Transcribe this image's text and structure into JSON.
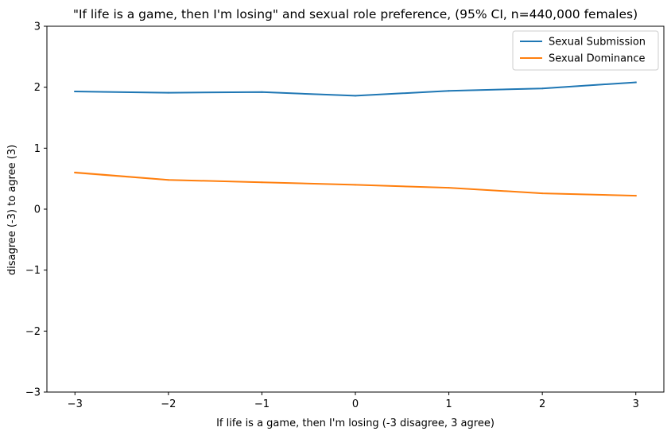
{
  "chart_data": {
    "type": "line",
    "title": "\"If life is a game, then I'm losing\" and sexual role preference, (95% CI, n=440,000 females)",
    "xlabel": "If life is a game, then I'm losing (-3 disagree, 3 agree)",
    "ylabel": "disagree (-3) to agree (3)",
    "x": [
      -3,
      -2,
      -1,
      0,
      1,
      2,
      3
    ],
    "x_tick_labels": [
      "−3",
      "−2",
      "−1",
      "0",
      "1",
      "2",
      "3"
    ],
    "y_tick_values": [
      -3,
      -2,
      -1,
      0,
      1,
      2,
      3
    ],
    "y_tick_labels": [
      "−3",
      "−2",
      "−1",
      "0",
      "1",
      "2",
      "3"
    ],
    "xlim": [
      -3.3,
      3.3
    ],
    "ylim": [
      -3,
      3
    ],
    "grid": false,
    "legend_position": "top-right",
    "series": [
      {
        "name": "Sexual Submission",
        "color": "#1f77b4",
        "values": [
          1.93,
          1.91,
          1.92,
          1.86,
          1.94,
          1.98,
          2.08
        ],
        "ci_low": [
          1.92,
          1.9,
          1.91,
          1.85,
          1.93,
          1.97,
          2.07
        ],
        "ci_high": [
          1.94,
          1.92,
          1.93,
          1.87,
          1.95,
          1.99,
          2.09
        ]
      },
      {
        "name": "Sexual Dominance",
        "color": "#ff7f0e",
        "values": [
          0.6,
          0.48,
          0.44,
          0.4,
          0.35,
          0.26,
          0.22
        ],
        "ci_low": [
          0.58,
          0.47,
          0.43,
          0.39,
          0.34,
          0.25,
          0.21
        ],
        "ci_high": [
          0.62,
          0.49,
          0.45,
          0.41,
          0.36,
          0.27,
          0.23
        ]
      }
    ]
  }
}
